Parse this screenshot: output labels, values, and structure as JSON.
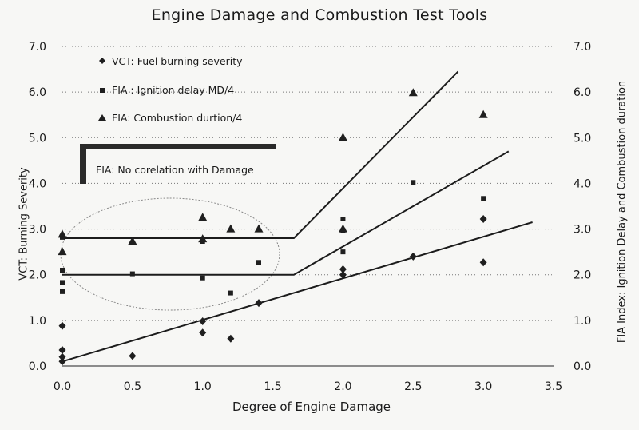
{
  "chart_data": {
    "type": "scatter",
    "title": "Engine Damage and Combustion Test Tools",
    "xlabel": "Degree of Engine Damage",
    "ylabel_left": "VCT: Burning Severity",
    "ylabel_right": "FIA Index: Ignition Delay and Combustion duration",
    "xlim": [
      0,
      3.5
    ],
    "ylim": [
      0,
      7
    ],
    "x_ticks": [
      "0.0",
      "0.5",
      "1.0",
      "1.5",
      "2.0",
      "2.5",
      "3.0",
      "3.5"
    ],
    "y_ticks": [
      "0.0",
      "1.0",
      "2.0",
      "3.0",
      "4.0",
      "5.0",
      "6.0",
      "7.0"
    ],
    "grid": "horizontal dotted",
    "legend_position": "top-left",
    "series": [
      {
        "name": "VCT: Fuel burning severity",
        "marker": "diamond",
        "points": [
          {
            "x": 0,
            "y": 0.1
          },
          {
            "x": 0,
            "y": 0.2
          },
          {
            "x": 0,
            "y": 0.35
          },
          {
            "x": 0,
            "y": 0.88
          },
          {
            "x": 0.5,
            "y": 0.22
          },
          {
            "x": 1.0,
            "y": 0.73
          },
          {
            "x": 1.0,
            "y": 0.98
          },
          {
            "x": 1.2,
            "y": 0.6
          },
          {
            "x": 1.4,
            "y": 1.38
          },
          {
            "x": 2.0,
            "y": 2.0
          },
          {
            "x": 2.0,
            "y": 2.12
          },
          {
            "x": 2.5,
            "y": 2.4
          },
          {
            "x": 3.0,
            "y": 2.27
          },
          {
            "x": 3.0,
            "y": 3.22
          }
        ]
      },
      {
        "name": "FIA : Ignition delay MD/4",
        "marker": "square",
        "points": [
          {
            "x": 0,
            "y": 1.63
          },
          {
            "x": 0,
            "y": 1.83
          },
          {
            "x": 0,
            "y": 2.1
          },
          {
            "x": 0,
            "y": 2.82
          },
          {
            "x": 0.5,
            "y": 2.02
          },
          {
            "x": 1.0,
            "y": 1.93
          },
          {
            "x": 1.0,
            "y": 2.73
          },
          {
            "x": 1.2,
            "y": 1.6
          },
          {
            "x": 1.4,
            "y": 2.27
          },
          {
            "x": 2.0,
            "y": 2.5
          },
          {
            "x": 2.0,
            "y": 2.97
          },
          {
            "x": 2.0,
            "y": 3.22
          },
          {
            "x": 2.5,
            "y": 4.02
          },
          {
            "x": 3.0,
            "y": 3.67
          }
        ]
      },
      {
        "name": "FIA: Combustion durtion/4",
        "marker": "triangle",
        "points": [
          {
            "x": 0,
            "y": 2.5
          },
          {
            "x": 0,
            "y": 2.88
          },
          {
            "x": 0.5,
            "y": 2.73
          },
          {
            "x": 1.0,
            "y": 2.78
          },
          {
            "x": 1.0,
            "y": 3.25
          },
          {
            "x": 1.2,
            "y": 3.0
          },
          {
            "x": 1.4,
            "y": 3.0
          },
          {
            "x": 2.0,
            "y": 3.0
          },
          {
            "x": 2.0,
            "y": 5.0
          },
          {
            "x": 2.5,
            "y": 5.98
          },
          {
            "x": 3.0,
            "y": 5.5
          }
        ]
      }
    ],
    "trend_lines": [
      {
        "points": [
          [
            0,
            0.1
          ],
          [
            3.35,
            3.15
          ]
        ]
      },
      {
        "points": [
          [
            0,
            2.0
          ],
          [
            1.65,
            2.0
          ],
          [
            3.18,
            4.7
          ]
        ]
      },
      {
        "points": [
          [
            0,
            2.8
          ],
          [
            1.65,
            2.8
          ],
          [
            2.82,
            6.45
          ]
        ]
      }
    ],
    "annotation": {
      "text": "FIA: No corelation with Damage"
    }
  }
}
